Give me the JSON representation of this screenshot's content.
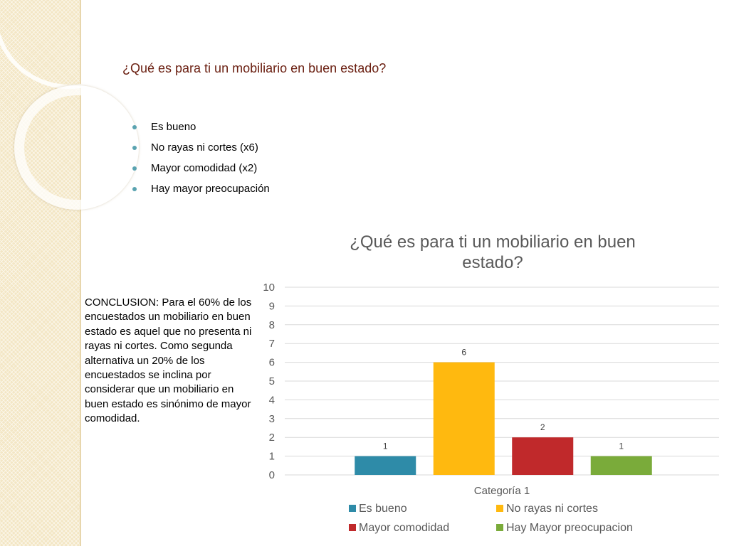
{
  "slide": {
    "title": "¿Qué es para ti un mobiliario en buen estado?",
    "bullets": [
      "Es bueno",
      "No rayas ni cortes (x6)",
      "Mayor comodidad (x2)",
      "Hay mayor preocupación"
    ],
    "conclusion": "CONCLUSION:  Para el 60% de los encuestados un mobiliario en buen estado es aquel que no presenta ni rayas ni cortes. Como segunda alternativa un 20% de los encuestados se inclina por considerar que un mobiliario en buen estado es sinónimo de mayor comodidad."
  },
  "chart_data": {
    "type": "bar",
    "title_lines": [
      "¿Qué es para ti un mobiliario en buen",
      "estado?"
    ],
    "categories": [
      "Categoría 1"
    ],
    "series": [
      {
        "name": "Es bueno",
        "values": [
          1
        ],
        "color": "#2e8ba8"
      },
      {
        "name": "No rayas ni cortes",
        "values": [
          6
        ],
        "color": "#ffb90f"
      },
      {
        "name": "Mayor comodidad",
        "values": [
          2
        ],
        "color": "#c0292b"
      },
      {
        "name": "Hay Mayor preocupacion",
        "values": [
          1
        ],
        "color": "#7aab3a"
      }
    ],
    "ylim": [
      0,
      10
    ],
    "yticks": [
      0,
      1,
      2,
      3,
      4,
      5,
      6,
      7,
      8,
      9,
      10
    ],
    "data_labels": true,
    "grid": true,
    "legend_position": "bottom"
  }
}
